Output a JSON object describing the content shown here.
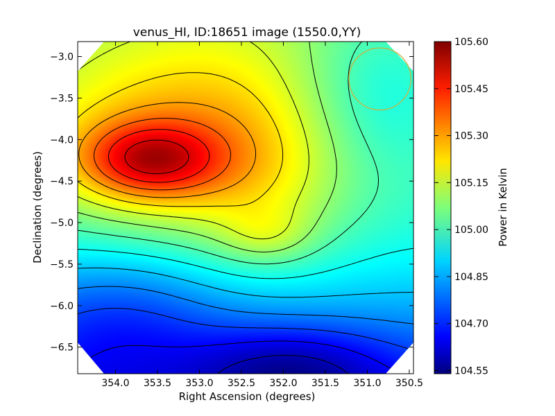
{
  "chart_data": {
    "type": "heatmap",
    "title": "venus_HI, ID:18651 image (1550.0,YY)",
    "xlabel": "Right Ascension (degrees)",
    "ylabel": "Declination (degrees)",
    "xlim": [
      354.45,
      350.45
    ],
    "ylim": [
      -6.82,
      -2.82
    ],
    "x_ticks": [
      354.0,
      353.5,
      353.0,
      352.5,
      352.0,
      351.5,
      351.0,
      350.5
    ],
    "x_tick_labels": [
      "354.0",
      "353.5",
      "353.0",
      "352.5",
      "352.0",
      "351.5",
      "351.0",
      "350.5"
    ],
    "y_ticks": [
      -3.0,
      -3.5,
      -4.0,
      -4.5,
      -5.0,
      -5.5,
      -6.0,
      -6.5
    ],
    "y_tick_labels": [
      "−3.0",
      "−3.5",
      "−4.0",
      "−4.5",
      "−5.0",
      "−5.5",
      "−6.0",
      "−6.5"
    ],
    "colorbar": {
      "label": "Power in Kelvin",
      "colormap": "jet",
      "range": [
        104.54,
        105.6
      ],
      "ticks": [
        104.55,
        104.7,
        104.85,
        105.0,
        105.15,
        105.3,
        105.45,
        105.6
      ],
      "tick_labels": [
        "104.55",
        "104.70",
        "104.85",
        "105.00",
        "105.15",
        "105.30",
        "105.45",
        "105.60"
      ]
    },
    "value_range": [
      104.55,
      105.57
    ],
    "max_location": {
      "x": 353.6,
      "y": -4.25,
      "value": 105.57
    },
    "local_max_location": {
      "x": 352.2,
      "y": -5.15,
      "value": 105.12
    },
    "min_location": {
      "x": 351.9,
      "y": -6.75,
      "value": 104.56
    },
    "beam_circle": {
      "center_x": 350.85,
      "center_y": -3.27,
      "radius_deg": 0.37,
      "color": "#c8b040"
    },
    "contours": "black",
    "grid": false
  }
}
